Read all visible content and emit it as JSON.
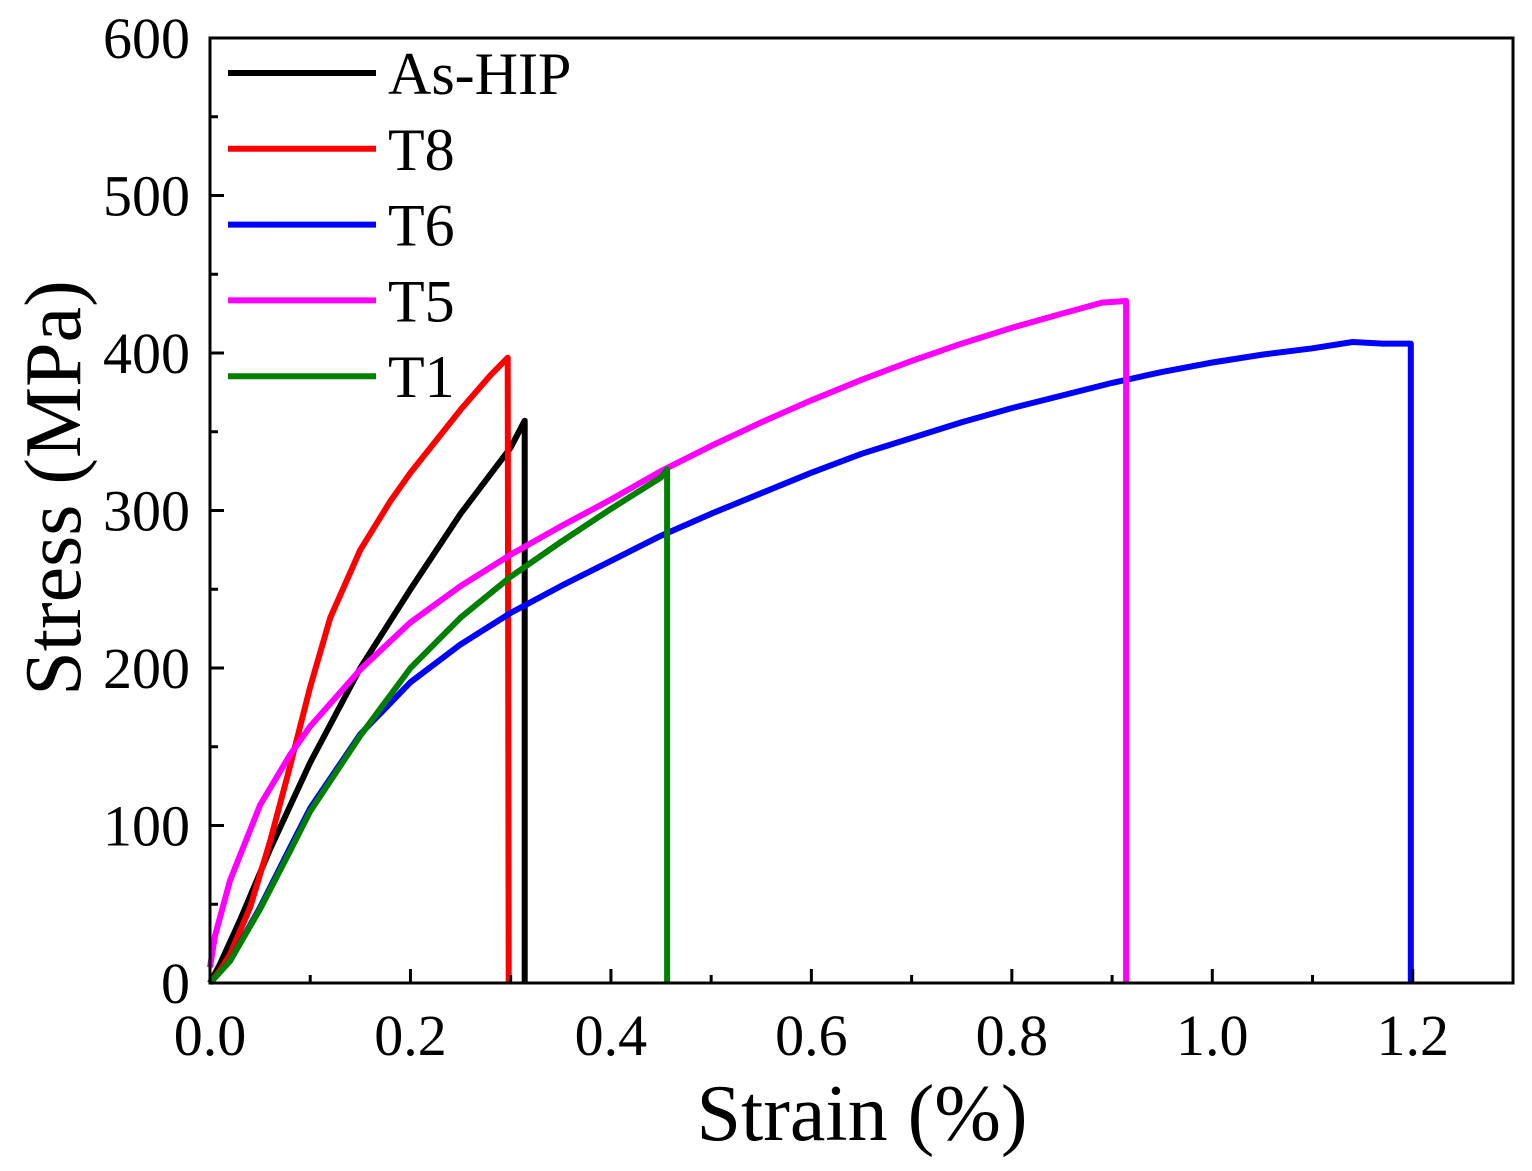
{
  "chart_data": {
    "type": "line",
    "title": "",
    "xlabel": "Strain (%)",
    "ylabel": "Stress (MPa)",
    "xlim": [
      0,
      1.3
    ],
    "ylim": [
      0,
      600
    ],
    "x_ticks": [
      {
        "value": 0.0,
        "label": "0.0"
      },
      {
        "value": 0.2,
        "label": "0.2"
      },
      {
        "value": 0.4,
        "label": "0.4"
      },
      {
        "value": 0.6,
        "label": "0.6"
      },
      {
        "value": 0.8,
        "label": "0.8"
      },
      {
        "value": 1.0,
        "label": "1.0"
      },
      {
        "value": 1.2,
        "label": "1.2"
      }
    ],
    "y_ticks": [
      {
        "value": 0,
        "label": "0"
      },
      {
        "value": 100,
        "label": "100"
      },
      {
        "value": 200,
        "label": "200"
      },
      {
        "value": 300,
        "label": "300"
      },
      {
        "value": 400,
        "label": "400"
      },
      {
        "value": 500,
        "label": "500"
      },
      {
        "value": 600,
        "label": "600"
      }
    ],
    "x_minor_step": 0.1,
    "y_minor_step": 50,
    "grid": false,
    "legend_position": "top-left",
    "series": [
      {
        "name": "As-HIP",
        "color": "#000000",
        "x": [
          0,
          0.01,
          0.03,
          0.06,
          0.1,
          0.15,
          0.2,
          0.25,
          0.3,
          0.314,
          0.314
        ],
        "y": [
          0,
          12,
          40,
          85,
          140,
          200,
          250,
          298,
          340,
          357,
          0
        ]
      },
      {
        "name": "T8",
        "color": "#ff0000",
        "x": [
          0,
          0.01,
          0.02,
          0.04,
          0.06,
          0.08,
          0.1,
          0.12,
          0.15,
          0.18,
          0.2,
          0.25,
          0.28,
          0.297,
          0.298
        ],
        "y": [
          0,
          8,
          18,
          48,
          90,
          138,
          188,
          232,
          275,
          306,
          324,
          364,
          386,
          397,
          0
        ]
      },
      {
        "name": "T6",
        "color": "#0000ff",
        "x": [
          0,
          0.02,
          0.05,
          0.08,
          0.1,
          0.15,
          0.2,
          0.25,
          0.3,
          0.35,
          0.4,
          0.45,
          0.5,
          0.55,
          0.6,
          0.65,
          0.7,
          0.75,
          0.8,
          0.85,
          0.9,
          0.95,
          1.0,
          1.05,
          1.1,
          1.14,
          1.17,
          1.198,
          1.198
        ],
        "y": [
          0,
          14,
          48,
          86,
          111,
          158,
          191,
          215,
          235,
          252,
          268,
          284,
          298,
          311,
          324,
          336,
          346,
          356,
          365,
          373,
          381,
          388,
          394,
          399,
          403,
          407,
          406,
          406,
          0
        ]
      },
      {
        "name": "T5",
        "color": "#ff00ff",
        "x": [
          0,
          0.005,
          0.02,
          0.05,
          0.08,
          0.1,
          0.15,
          0.2,
          0.25,
          0.3,
          0.35,
          0.4,
          0.45,
          0.5,
          0.55,
          0.6,
          0.65,
          0.7,
          0.75,
          0.8,
          0.85,
          0.89,
          0.914,
          0.914
        ],
        "y": [
          10,
          30,
          65,
          113,
          145,
          163,
          199,
          229,
          252,
          272,
          290,
          307,
          325,
          341,
          356,
          370,
          383,
          395,
          406,
          416,
          425,
          432,
          433,
          0
        ]
      },
      {
        "name": "T1",
        "color": "#007f00",
        "x": [
          0,
          0.02,
          0.05,
          0.08,
          0.1,
          0.15,
          0.2,
          0.25,
          0.3,
          0.35,
          0.4,
          0.45,
          0.456,
          0.456
        ],
        "y": [
          0,
          14,
          47,
          84,
          109,
          157,
          200,
          232,
          258,
          280,
          301,
          321,
          326,
          0
        ]
      }
    ]
  }
}
